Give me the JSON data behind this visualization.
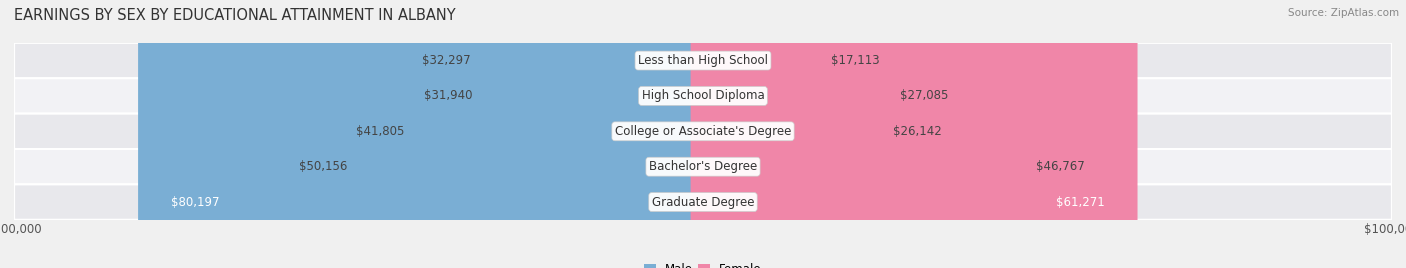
{
  "title": "EARNINGS BY SEX BY EDUCATIONAL ATTAINMENT IN ALBANY",
  "source": "Source: ZipAtlas.com",
  "categories": [
    "Less than High School",
    "High School Diploma",
    "College or Associate's Degree",
    "Bachelor's Degree",
    "Graduate Degree"
  ],
  "male_values": [
    32297,
    31940,
    41805,
    50156,
    80197
  ],
  "female_values": [
    17113,
    27085,
    26142,
    46767,
    61271
  ],
  "male_color": "#7aaed4",
  "female_color": "#f086a8",
  "max_value": 100000,
  "bg_color": "#f0f0f0",
  "row_colors": [
    "#e8e8ec",
    "#f2f2f5"
  ],
  "title_fontsize": 10.5,
  "label_fontsize": 8.5,
  "tick_fontsize": 8.5,
  "bar_height": 0.58
}
